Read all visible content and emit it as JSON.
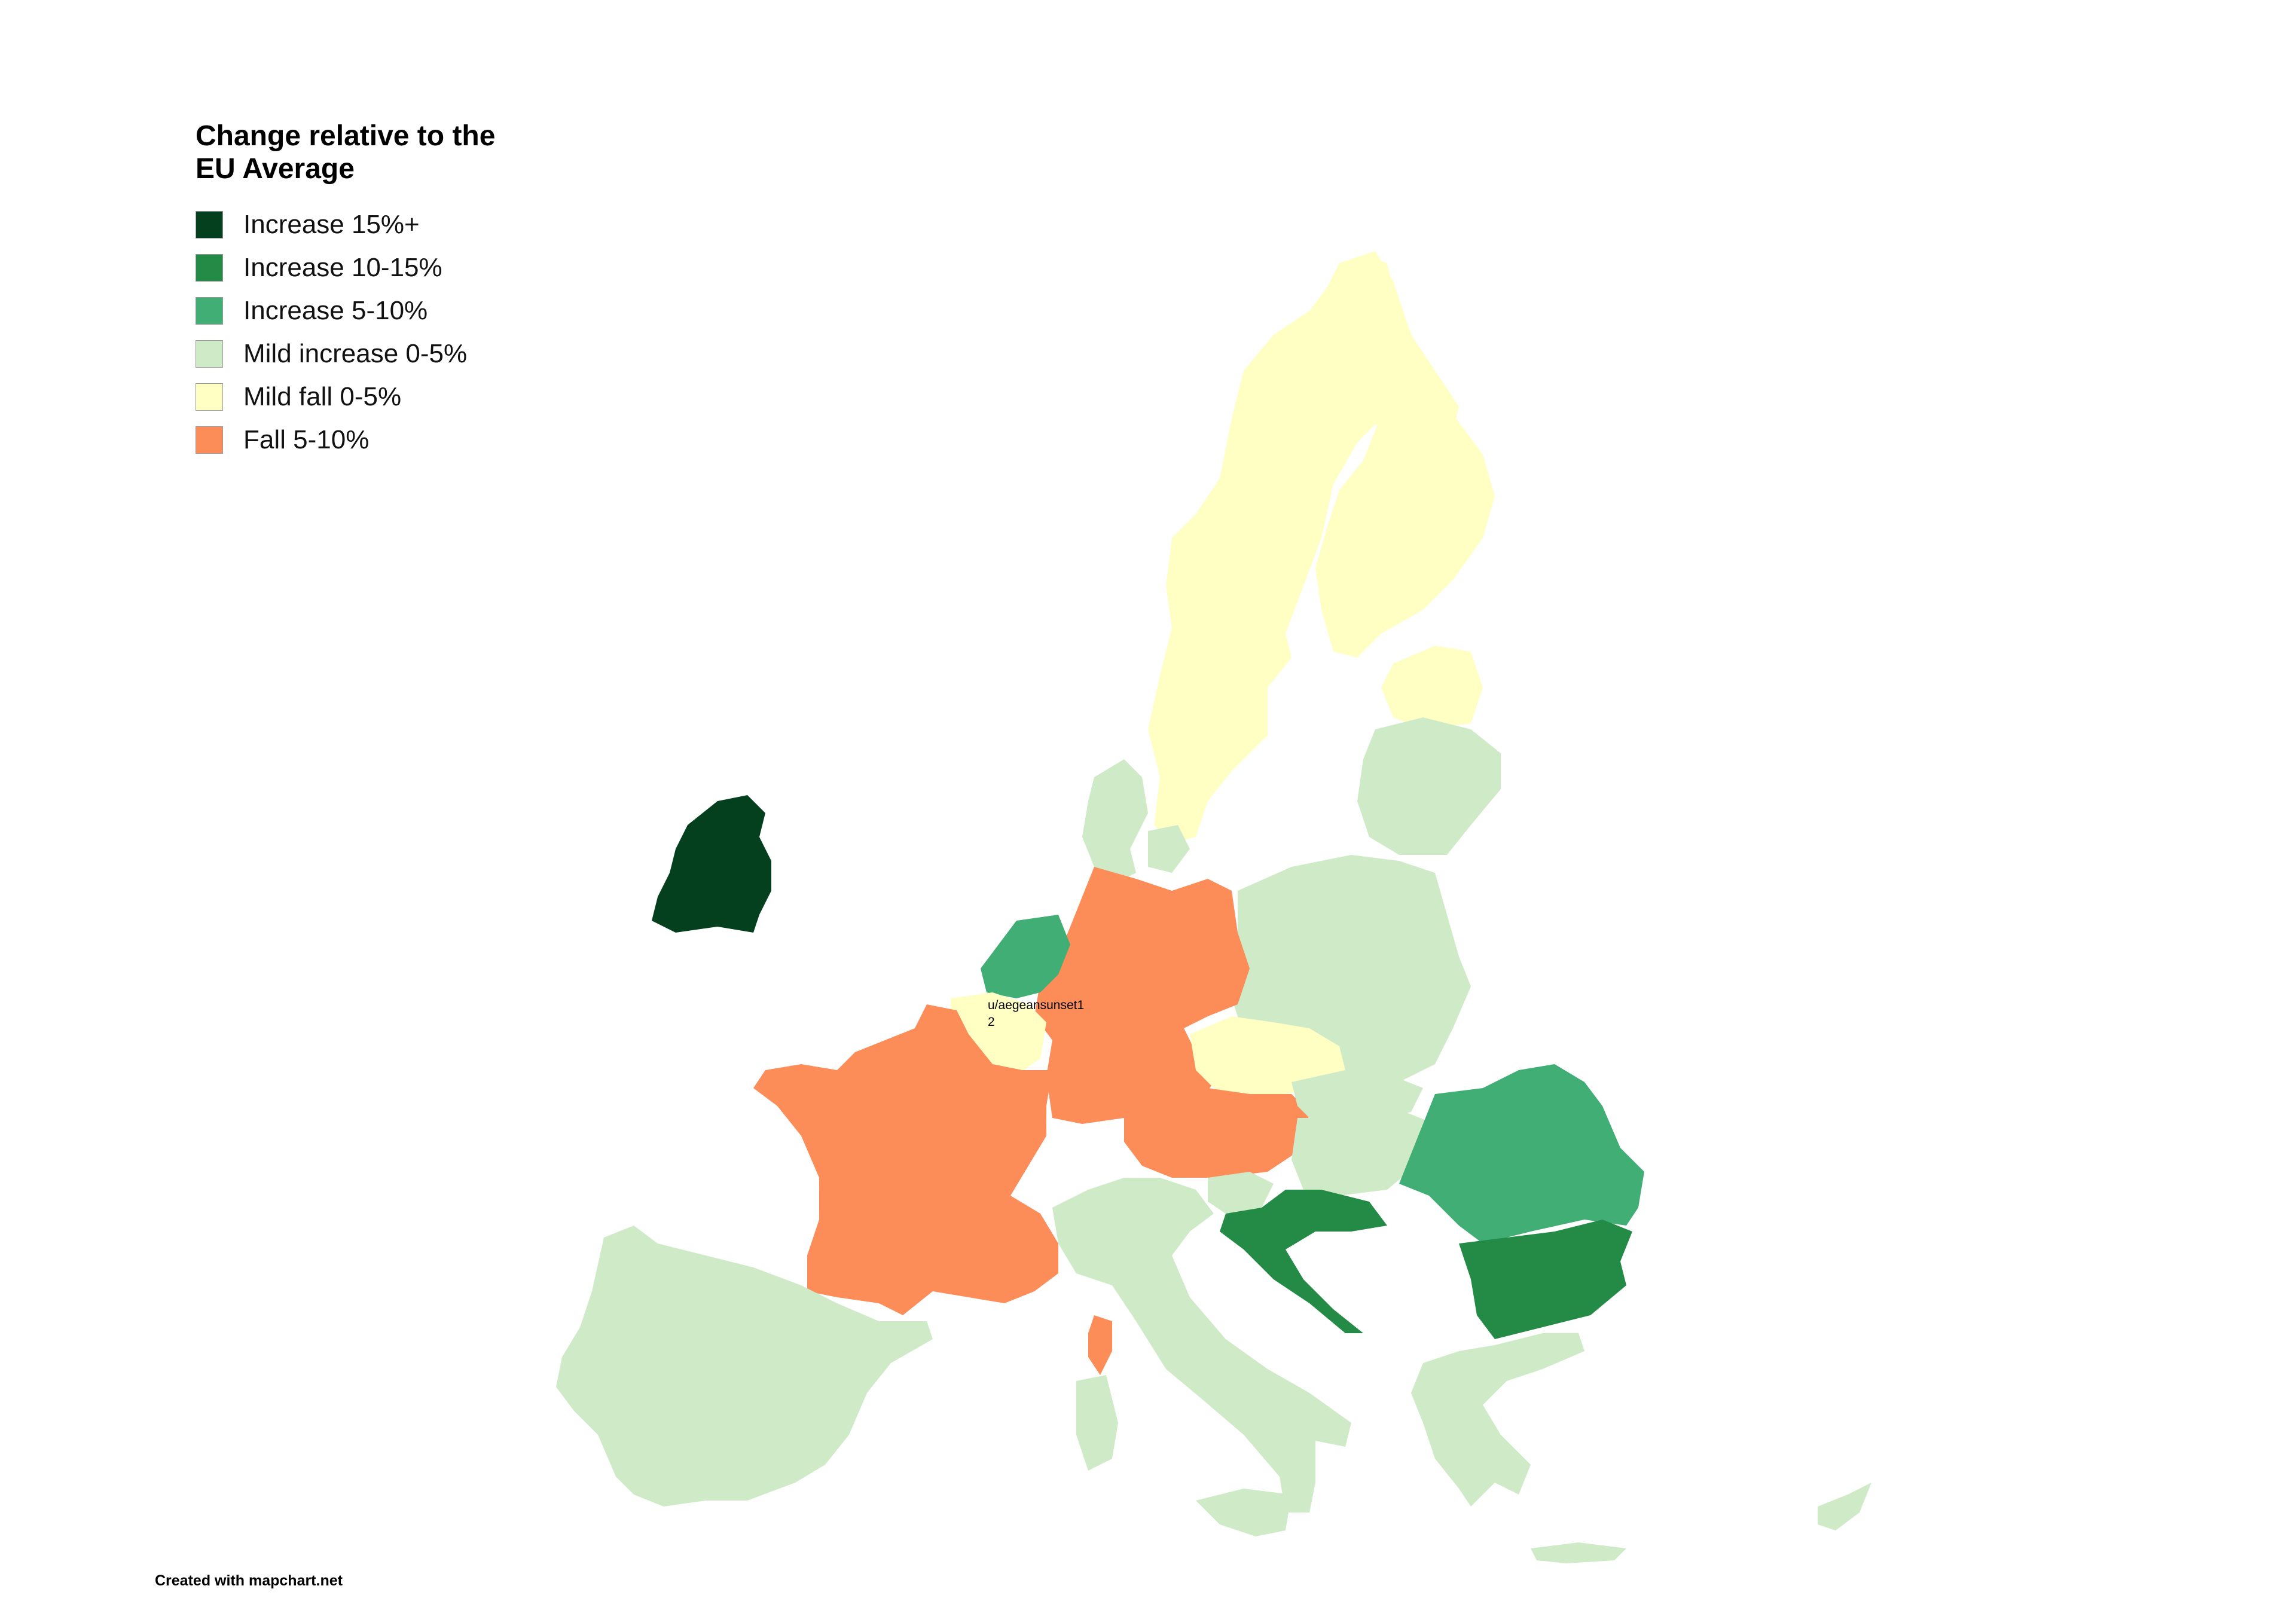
{
  "legend": {
    "title": "Change relative to the\nEU Average",
    "items": [
      {
        "label": "Increase 15%+",
        "color": "#04401d"
      },
      {
        "label": "Increase 10-15%",
        "color": "#238b45"
      },
      {
        "label": "Increase 5-10%",
        "color": "#41ae76"
      },
      {
        "label": "Mild increase 0-5%",
        "color": "#ceeac7"
      },
      {
        "label": "Mild fall 0-5%",
        "color": "#ffffc4"
      },
      {
        "label": "Fall 5-10%",
        "color": "#fc8d59"
      }
    ]
  },
  "credit": "Created with mapchart.net",
  "author_label": "u/aegeansunset1\n2",
  "countries": [
    {
      "name": "Ireland",
      "category": "Increase 15%+"
    },
    {
      "name": "Croatia",
      "category": "Increase 10-15%"
    },
    {
      "name": "Bulgaria",
      "category": "Increase 10-15%"
    },
    {
      "name": "Netherlands",
      "category": "Increase 5-10%"
    },
    {
      "name": "Romania",
      "category": "Increase 5-10%"
    },
    {
      "name": "Spain",
      "category": "Mild increase 0-5%"
    },
    {
      "name": "Italy",
      "category": "Mild increase 0-5%"
    },
    {
      "name": "Denmark",
      "category": "Mild increase 0-5%"
    },
    {
      "name": "Poland",
      "category": "Mild increase 0-5%"
    },
    {
      "name": "Lithuania",
      "category": "Mild increase 0-5%"
    },
    {
      "name": "Slovakia",
      "category": "Mild increase 0-5%"
    },
    {
      "name": "Hungary",
      "category": "Mild increase 0-5%"
    },
    {
      "name": "Slovenia",
      "category": "Mild increase 0-5%"
    },
    {
      "name": "Greece",
      "category": "Mild increase 0-5%"
    },
    {
      "name": "Cyprus",
      "category": "Mild increase 0-5%"
    },
    {
      "name": "Sweden",
      "category": "Mild fall 0-5%"
    },
    {
      "name": "Finland",
      "category": "Mild fall 0-5%"
    },
    {
      "name": "Estonia",
      "category": "Mild fall 0-5%"
    },
    {
      "name": "Belgium",
      "category": "Mild fall 0-5%"
    },
    {
      "name": "Czechia",
      "category": "Mild fall 0-5%"
    },
    {
      "name": "France",
      "category": "Fall 5-10%"
    },
    {
      "name": "Germany",
      "category": "Fall 5-10%"
    },
    {
      "name": "Austria",
      "category": "Fall 5-10%"
    }
  ]
}
